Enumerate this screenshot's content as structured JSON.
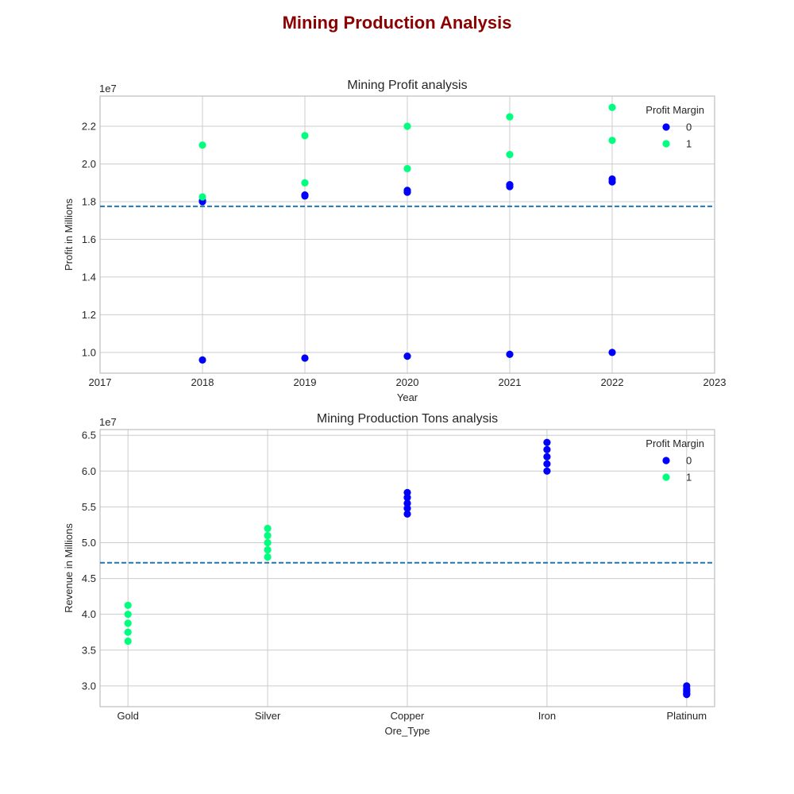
{
  "figure": {
    "title": "Mining Production Analysis",
    "title_color": "#8b0000"
  },
  "colors": {
    "margin_0": "#0000ff",
    "margin_1": "#00ff7f",
    "mean_line": "#1f77b4",
    "grid": "#cccccc",
    "frame": "#bdbdbd"
  },
  "chart_data": [
    {
      "type": "scatter",
      "title": "Mining Profit analysis",
      "xlabel": "Year",
      "ylabel": "Profit in Millions",
      "offset_text": "1e7",
      "xlim": [
        2017,
        2023
      ],
      "ylim": [
        8900000,
        23600000
      ],
      "x_ticks": [
        2017,
        2018,
        2019,
        2020,
        2021,
        2022,
        2023
      ],
      "y_ticks": [
        10000000,
        12000000,
        14000000,
        16000000,
        18000000,
        20000000,
        22000000
      ],
      "y_tick_labels": [
        "1.0",
        "1.2",
        "1.4",
        "1.6",
        "1.8",
        "2.0",
        "2.2"
      ],
      "mean_line": 17750000,
      "grid": true,
      "legend": {
        "title": "Profit Margin",
        "placement": "top-right",
        "entries": [
          "0",
          "1"
        ]
      },
      "series": [
        {
          "name": "0",
          "x": [
            2018,
            2018,
            2018,
            2019,
            2019,
            2019,
            2020,
            2020,
            2020,
            2021,
            2021,
            2021,
            2022,
            2022,
            2022
          ],
          "y": [
            9600000,
            18000000,
            18050000,
            9700000,
            18300000,
            18350000,
            9800000,
            18500000,
            18600000,
            9900000,
            18800000,
            18900000,
            10000000,
            19050000,
            19200000
          ]
        },
        {
          "name": "1",
          "x": [
            2018,
            2018,
            2019,
            2019,
            2020,
            2020,
            2021,
            2021,
            2022,
            2022
          ],
          "y": [
            21000000,
            18250000,
            21500000,
            19000000,
            22000000,
            19750000,
            22500000,
            20500000,
            23000000,
            21250000
          ]
        }
      ]
    },
    {
      "type": "scatter",
      "title": "Mining Production Tons analysis",
      "xlabel": "Ore_Type",
      "ylabel": "Revenue in Millions",
      "offset_text": "1e7",
      "categories": [
        "Gold",
        "Silver",
        "Copper",
        "Iron",
        "Platinum"
      ],
      "xlim": [
        -0.2,
        4.2
      ],
      "ylim": [
        27100000,
        65800000
      ],
      "y_ticks": [
        30000000,
        35000000,
        40000000,
        45000000,
        50000000,
        55000000,
        60000000,
        65000000
      ],
      "y_tick_labels": [
        "3.0",
        "3.5",
        "4.0",
        "4.5",
        "5.0",
        "5.5",
        "6.0",
        "6.5"
      ],
      "mean_line": 47200000,
      "grid": true,
      "legend": {
        "title": "Profit Margin",
        "placement": "top-right",
        "entries": [
          "0",
          "1"
        ]
      },
      "series": [
        {
          "name": "0",
          "x": [
            "Copper",
            "Copper",
            "Copper",
            "Copper",
            "Copper",
            "Iron",
            "Iron",
            "Iron",
            "Iron",
            "Iron",
            "Platinum",
            "Platinum",
            "Platinum",
            "Platinum",
            "Platinum"
          ],
          "y": [
            54000000,
            54800000,
            55500000,
            56300000,
            57000000,
            60000000,
            61000000,
            62000000,
            63000000,
            64000000,
            28800000,
            29000000,
            29300000,
            29600000,
            30000000
          ]
        },
        {
          "name": "1",
          "x": [
            "Gold",
            "Gold",
            "Gold",
            "Gold",
            "Gold",
            "Silver",
            "Silver",
            "Silver",
            "Silver",
            "Silver"
          ],
          "y": [
            36250000,
            37500000,
            38750000,
            40000000,
            41250000,
            48000000,
            49000000,
            50000000,
            51000000,
            52000000
          ]
        }
      ]
    }
  ]
}
